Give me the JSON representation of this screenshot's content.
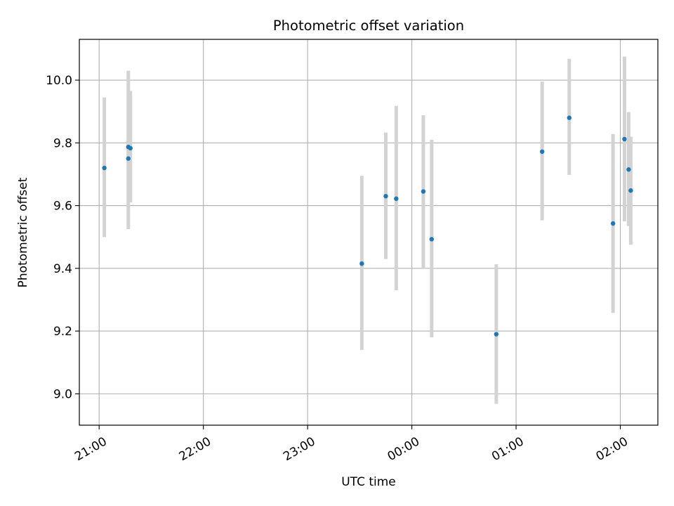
{
  "colors": {
    "background": "#ffffff",
    "point": "#1f77b4",
    "errorbar": "#d3d3d3",
    "grid": "#b0b0b0",
    "axes": "#000000"
  },
  "chart_data": {
    "type": "scatter",
    "title": "Photometric offset variation",
    "xlabel": "UTC time",
    "ylabel": "Photometric offset",
    "x_units": "hours since 21:00 UTC (values >= 3 are after midnight)",
    "xlim": [
      -0.19,
      5.36
    ],
    "ylim": [
      8.9,
      10.13
    ],
    "xticks": [
      {
        "value": 0,
        "label": "21:00"
      },
      {
        "value": 1,
        "label": "22:00"
      },
      {
        "value": 2,
        "label": "23:00"
      },
      {
        "value": 3,
        "label": "00:00"
      },
      {
        "value": 4,
        "label": "01:00"
      },
      {
        "value": 5,
        "label": "02:00"
      }
    ],
    "yticks": [
      {
        "value": 9.0,
        "label": "9.0"
      },
      {
        "value": 9.2,
        "label": "9.2"
      },
      {
        "value": 9.4,
        "label": "9.4"
      },
      {
        "value": 9.6,
        "label": "9.6"
      },
      {
        "value": 9.8,
        "label": "9.8"
      },
      {
        "value": 10.0,
        "label": "10.0"
      }
    ],
    "grid": true,
    "points": [
      {
        "x": 0.05,
        "y": 9.72,
        "err_low": 9.5,
        "err_high": 9.945
      },
      {
        "x": 0.28,
        "y": 9.75,
        "err_low": 9.525,
        "err_high": 10.03
      },
      {
        "x": 0.28,
        "y": 9.787,
        "err_low": 9.61,
        "err_high": 9.965
      },
      {
        "x": 0.3,
        "y": 9.783,
        "err_low": 9.61,
        "err_high": 9.965
      },
      {
        "x": 2.52,
        "y": 9.415,
        "err_low": 9.14,
        "err_high": 9.695
      },
      {
        "x": 2.75,
        "y": 9.63,
        "err_low": 9.43,
        "err_high": 9.833
      },
      {
        "x": 2.85,
        "y": 9.622,
        "err_low": 9.33,
        "err_high": 9.918
      },
      {
        "x": 3.11,
        "y": 9.645,
        "err_low": 9.4,
        "err_high": 9.888
      },
      {
        "x": 3.19,
        "y": 9.493,
        "err_low": 9.18,
        "err_high": 9.81
      },
      {
        "x": 3.81,
        "y": 9.19,
        "err_low": 8.968,
        "err_high": 9.413
      },
      {
        "x": 4.25,
        "y": 9.772,
        "err_low": 9.553,
        "err_high": 9.995
      },
      {
        "x": 4.51,
        "y": 9.88,
        "err_low": 9.698,
        "err_high": 10.068
      },
      {
        "x": 4.93,
        "y": 9.543,
        "err_low": 9.258,
        "err_high": 9.828
      },
      {
        "x": 5.04,
        "y": 9.812,
        "err_low": 9.55,
        "err_high": 10.075
      },
      {
        "x": 5.08,
        "y": 9.715,
        "err_low": 9.535,
        "err_high": 9.898
      },
      {
        "x": 5.1,
        "y": 9.648,
        "err_low": 9.475,
        "err_high": 9.82
      }
    ]
  }
}
